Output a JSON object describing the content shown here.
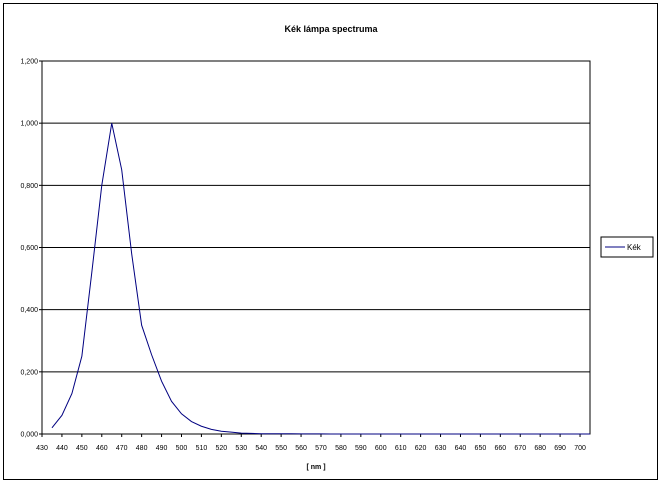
{
  "chart_data": {
    "type": "line",
    "title": "Kék lámpa spectruma",
    "xlabel": "[ nm ]",
    "ylabel": "",
    "xlim": [
      430,
      705
    ],
    "ylim": [
      0,
      1.2
    ],
    "x_ticks": [
      430,
      440,
      450,
      460,
      470,
      480,
      490,
      500,
      510,
      520,
      530,
      540,
      550,
      560,
      570,
      580,
      590,
      600,
      610,
      620,
      630,
      640,
      650,
      660,
      670,
      680,
      690,
      700
    ],
    "y_ticks": [
      0,
      0.2,
      0.4,
      0.6,
      0.8,
      1.0,
      1.2
    ],
    "y_tick_labels": [
      "0,000",
      "0,200",
      "0,400",
      "0,600",
      "0,800",
      "1,000",
      "1,200"
    ],
    "grid": "horizontal",
    "legend_position": "right",
    "color": "#000080",
    "series": [
      {
        "name": "Kék",
        "x": [
          435,
          440,
          445,
          450,
          455,
          460,
          465,
          470,
          475,
          480,
          485,
          490,
          495,
          500,
          505,
          510,
          515,
          520,
          525,
          530,
          535,
          540,
          545,
          550,
          555,
          560,
          565,
          570,
          575,
          580,
          585,
          590,
          595,
          600,
          605,
          610,
          615,
          620,
          625,
          630,
          635,
          640,
          645,
          650,
          655,
          660,
          665,
          670,
          675,
          680,
          685,
          690,
          695,
          700,
          705
        ],
        "values": [
          0.02,
          0.06,
          0.13,
          0.25,
          0.52,
          0.8,
          1.0,
          0.85,
          0.58,
          0.35,
          0.255,
          0.17,
          0.105,
          0.065,
          0.04,
          0.025,
          0.015,
          0.009,
          0.006,
          0.003,
          0.002,
          0.001,
          0.001,
          0.0008,
          0.0006,
          0.0005,
          0.0004,
          0.0003,
          0.0002,
          0.0002,
          0.0001,
          0.0001,
          0.0001,
          0.0001,
          0.0001,
          0.0001,
          0.0001,
          0.0001,
          0.0001,
          0.0001,
          0.0001,
          0.0001,
          0.0001,
          0.0001,
          0.0001,
          0.0001,
          0.0001,
          0.0001,
          0.0001,
          0.0001,
          0.0001,
          0.0001,
          0.0001,
          0.0001,
          0.0001
        ]
      }
    ]
  }
}
